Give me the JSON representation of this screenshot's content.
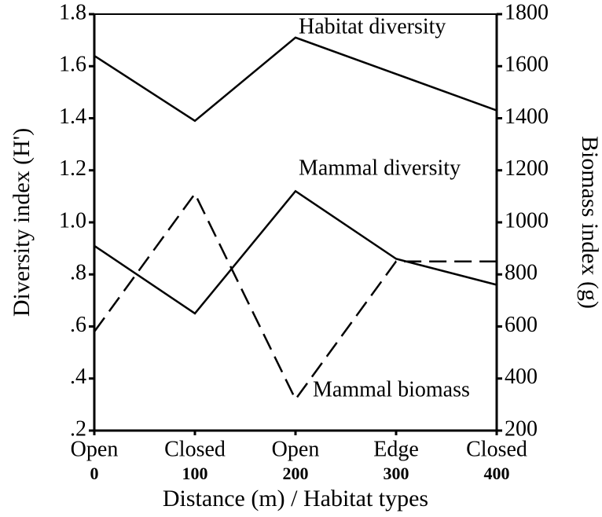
{
  "chart_data": {
    "type": "line",
    "x_label": "Distance (m) / Habitat types",
    "y_label": "Diversity index (H')",
    "y2_label": "Biomass index (g)",
    "habitats": [
      "Open",
      "Closed",
      "Open",
      "Edge",
      "Closed"
    ],
    "x": [
      0,
      100,
      200,
      300,
      400
    ],
    "xlim": [
      0,
      400
    ],
    "xticks": [
      0,
      100,
      200,
      300,
      400
    ],
    "ylim": [
      0.2,
      1.8
    ],
    "yticks": [
      {
        "value": 1.8,
        "label": "1.8"
      },
      {
        "value": 1.6,
        "label": "1.6"
      },
      {
        "value": 1.4,
        "label": "1.4"
      },
      {
        "value": 1.2,
        "label": "1.2"
      },
      {
        "value": 1.0,
        "label": "1.0"
      },
      {
        "value": 0.8,
        "label": ".8"
      },
      {
        "value": 0.6,
        "label": ".6"
      },
      {
        "value": 0.4,
        "label": ".4"
      },
      {
        "value": 0.2,
        "label": ".2"
      }
    ],
    "y2lim": [
      200,
      1800
    ],
    "y2ticks": [
      1800,
      1600,
      1400,
      1200,
      1000,
      800,
      600,
      400,
      200
    ],
    "series": [
      {
        "name": "Habitat diversity",
        "color": "#000000",
        "linestyle": "solid",
        "values": [
          1.64,
          1.39,
          1.71,
          1.57,
          1.43
        ]
      },
      {
        "name": "Mammal diversity",
        "color": "#000000",
        "linestyle": "solid",
        "values": [
          0.91,
          0.65,
          1.12,
          0.86,
          0.76
        ]
      },
      {
        "name": "Mammal biomass",
        "color": "#000000",
        "linestyle": "dashed",
        "axis": "y2",
        "values": [
          580,
          1110,
          320,
          850,
          850
        ]
      }
    ]
  }
}
